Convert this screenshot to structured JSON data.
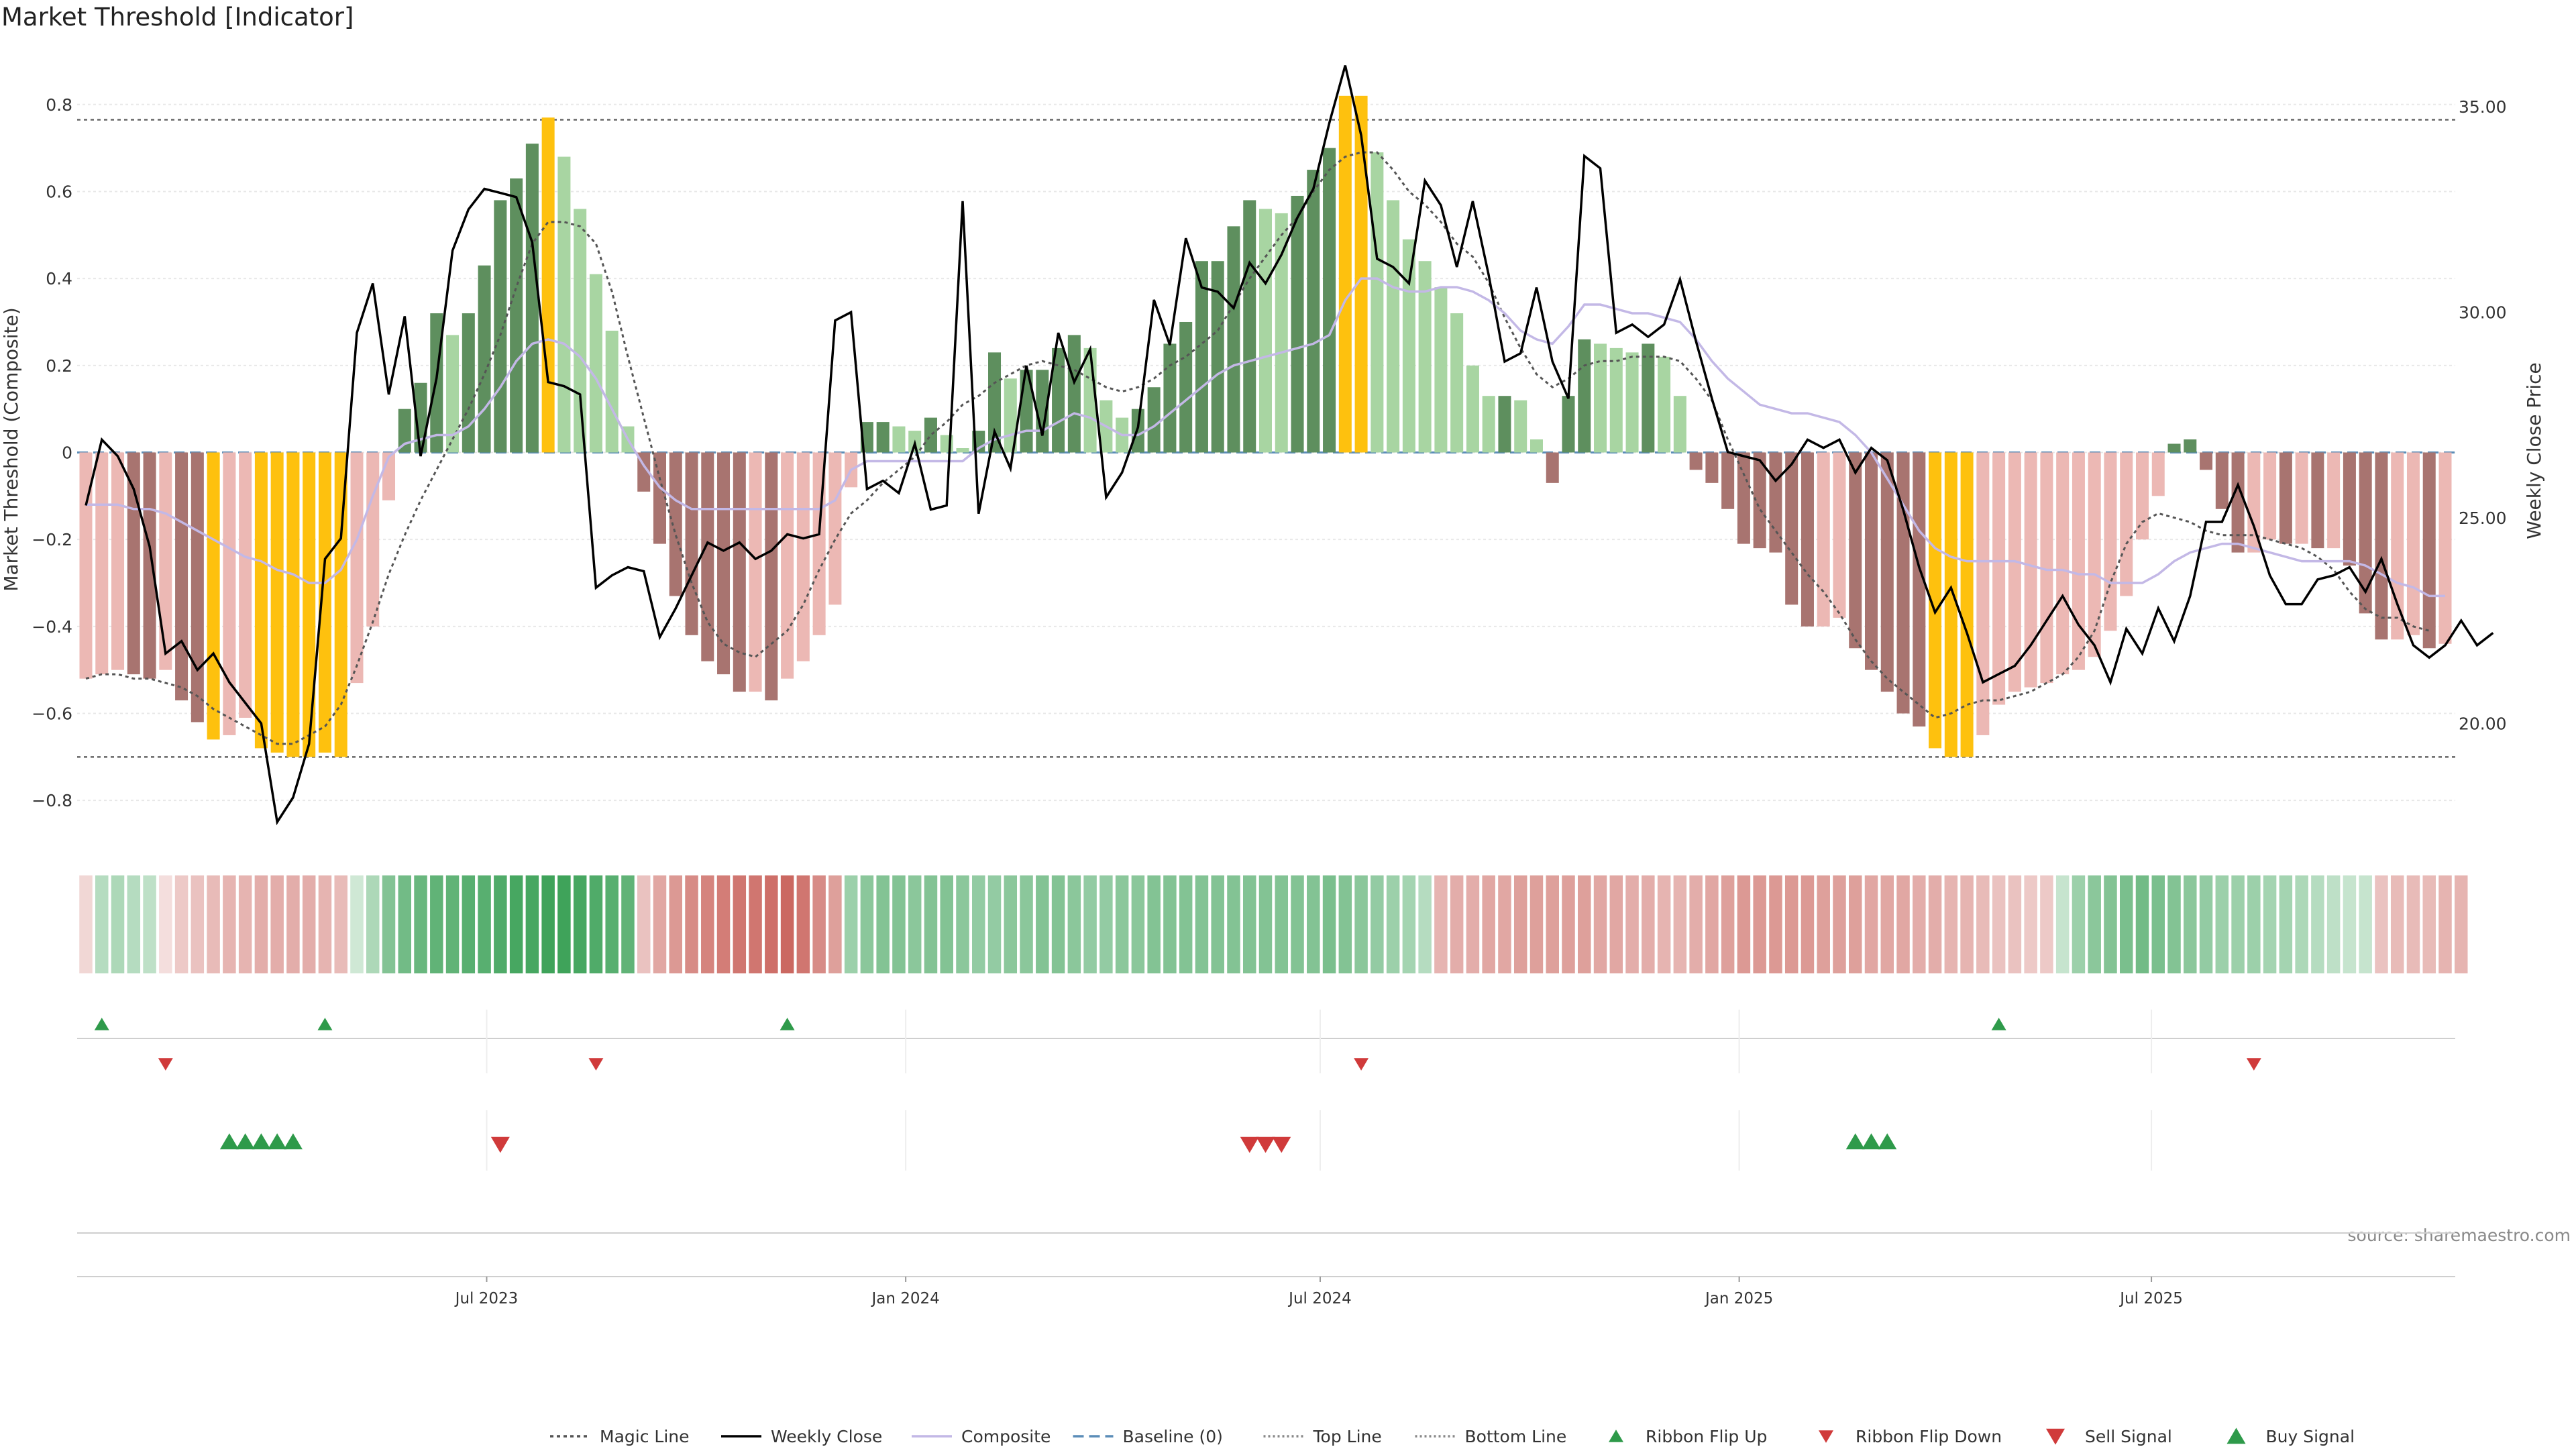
{
  "chart_data": {
    "type": "bar",
    "title": "Market Threshold [Indicator]",
    "ylabel_left": "Market Threshold (Composite)",
    "ylabel_right": "Weekly Close Price",
    "source_note": "source: sharemaestro.com",
    "ylim_left": [
      -0.9,
      0.92
    ],
    "ylim_right": [
      17.07,
      36.32
    ],
    "yticks_left": [
      0.8,
      0.6,
      0.4,
      0.2,
      0,
      -0.2,
      -0.4,
      -0.6,
      -0.8
    ],
    "ytick_labels_left": [
      "0.8",
      "0.6",
      "0.4",
      "0.2",
      "0",
      "−0.2",
      "−0.4",
      "−0.6",
      "−0.8"
    ],
    "yticks_right": [
      35,
      30,
      25,
      20
    ],
    "ytick_labels_right": [
      "35.00",
      "30.00",
      "25.00",
      "20.00"
    ],
    "x_start": "2023-01-06",
    "x_step_days": 7,
    "x_ticks": [
      {
        "date": "2023-07-01",
        "label": "Jul 2023"
      },
      {
        "date": "2024-01-01",
        "label": "Jan 2024"
      },
      {
        "date": "2024-07-01",
        "label": "Jul 2024"
      },
      {
        "date": "2025-01-01",
        "label": "Jan 2025"
      },
      {
        "date": "2025-07-01",
        "label": "Jul 2025"
      }
    ],
    "top_line": 0.765,
    "bottom_line": -0.7,
    "colors": {
      "strong_green": "#5e8f5e",
      "light_green": "#a8d5a2",
      "strong_red": "#a87470",
      "light_red": "#ecb8b4",
      "extreme": "#fec10e",
      "price": "#000000",
      "composite": "#c3b8e6",
      "magic": "#555555",
      "baseline": "#5b8db8",
      "ribbon_green": "#3fa35a",
      "ribbon_red": "#c9615a",
      "flip_up": "#2e9a4a",
      "flip_down": "#d03a3a"
    },
    "series": [
      {
        "name": "Market Threshold",
        "kind": "bars",
        "values": [
          -0.52,
          -0.51,
          -0.5,
          -0.51,
          -0.52,
          -0.5,
          -0.57,
          -0.62,
          -0.66,
          -0.65,
          -0.61,
          -0.68,
          -0.69,
          -0.7,
          -0.7,
          -0.69,
          -0.7,
          -0.53,
          -0.4,
          -0.11,
          0.1,
          0.16,
          0.32,
          0.27,
          0.32,
          0.43,
          0.58,
          0.63,
          0.71,
          0.77,
          0.68,
          0.56,
          0.41,
          0.28,
          0.06,
          -0.09,
          -0.21,
          -0.33,
          -0.42,
          -0.48,
          -0.51,
          -0.55,
          -0.55,
          -0.57,
          -0.52,
          -0.48,
          -0.42,
          -0.35,
          -0.08,
          0.07,
          0.07,
          0.06,
          0.05,
          0.08,
          0.04,
          0.01,
          0.05,
          0.23,
          0.17,
          0.19,
          0.19,
          0.24,
          0.27,
          0.24,
          0.12,
          0.08,
          0.1,
          0.15,
          0.25,
          0.3,
          0.44,
          0.44,
          0.52,
          0.58,
          0.56,
          0.55,
          0.59,
          0.65,
          0.7,
          0.82,
          0.82,
          0.69,
          0.58,
          0.49,
          0.44,
          0.38,
          0.32,
          0.2,
          0.13,
          0.13,
          0.12,
          0.03,
          -0.07,
          0.13,
          0.26,
          0.25,
          0.24,
          0.23,
          0.25,
          0.22,
          0.13,
          -0.04,
          -0.07,
          -0.13,
          -0.21,
          -0.22,
          -0.23,
          -0.35,
          -0.4,
          -0.4,
          -0.38,
          -0.45,
          -0.5,
          -0.55,
          -0.6,
          -0.63,
          -0.68,
          -0.7,
          -0.7,
          -0.65,
          -0.58,
          -0.55,
          -0.54,
          -0.53,
          -0.51,
          -0.5,
          -0.47,
          -0.41,
          -0.33,
          -0.2,
          -0.1,
          0.02,
          0.03,
          -0.04,
          -0.13,
          -0.23,
          -0.23,
          -0.2,
          -0.21,
          -0.21,
          -0.22,
          -0.22,
          -0.26,
          -0.37,
          -0.43,
          -0.43,
          -0.42,
          -0.45,
          -0.44
        ]
      },
      {
        "name": "Weekly Close",
        "kind": "line",
        "values": [
          25.3,
          26.9,
          26.5,
          25.7,
          24.3,
          21.7,
          22.0,
          21.3,
          21.7,
          21.0,
          20.5,
          20.0,
          17.6,
          18.2,
          19.5,
          24.0,
          24.5,
          29.5,
          30.7,
          28.0,
          29.9,
          26.5,
          28.4,
          31.5,
          32.5,
          33.0,
          32.9,
          32.8,
          31.7,
          28.3,
          28.2,
          28.0,
          23.3,
          23.6,
          23.8,
          23.7,
          22.1,
          22.8,
          23.6,
          24.4,
          24.2,
          24.4,
          24.0,
          24.2,
          24.6,
          24.5,
          24.6,
          29.8,
          30.0,
          25.7,
          25.9,
          25.6,
          26.8,
          25.2,
          25.3,
          32.7,
          25.1,
          27.1,
          26.2,
          28.7,
          27.0,
          29.5,
          28.3,
          29.1,
          25.5,
          26.1,
          27.2,
          30.3,
          29.2,
          31.8,
          30.6,
          30.5,
          30.1,
          31.2,
          30.7,
          31.4,
          32.3,
          33.0,
          34.6,
          36.0,
          34.3,
          31.3,
          31.1,
          30.7,
          33.2,
          32.6,
          31.1,
          32.7,
          30.9,
          28.8,
          29.0,
          30.6,
          28.8,
          27.9,
          33.8,
          33.5,
          29.5,
          29.7,
          29.4,
          29.7,
          30.8,
          29.3,
          27.9,
          26.6,
          26.5,
          26.4,
          25.9,
          26.3,
          26.9,
          26.7,
          26.9,
          26.1,
          26.7,
          26.4,
          25.2,
          23.8,
          22.7,
          23.3,
          22.2,
          21.0,
          21.2,
          21.4,
          21.9,
          22.5,
          23.1,
          22.4,
          21.9,
          21.0,
          22.3,
          21.7,
          22.8,
          22.0,
          23.1,
          24.9,
          24.9,
          25.8,
          24.8,
          23.6,
          22.9,
          22.9,
          23.5,
          23.6,
          23.8,
          23.2,
          24.0,
          22.9,
          21.9,
          21.6,
          21.9,
          22.5,
          21.9,
          22.2
        ]
      },
      {
        "name": "Composite",
        "kind": "line",
        "values": [
          -0.12,
          -0.12,
          -0.12,
          -0.13,
          -0.13,
          -0.14,
          -0.16,
          -0.18,
          -0.2,
          -0.22,
          -0.24,
          -0.25,
          -0.27,
          -0.28,
          -0.3,
          -0.3,
          -0.27,
          -0.2,
          -0.1,
          -0.01,
          0.02,
          0.03,
          0.04,
          0.04,
          0.06,
          0.1,
          0.15,
          0.21,
          0.25,
          0.26,
          0.25,
          0.22,
          0.17,
          0.1,
          0.03,
          -0.03,
          -0.08,
          -0.11,
          -0.13,
          -0.13,
          -0.13,
          -0.13,
          -0.13,
          -0.13,
          -0.13,
          -0.13,
          -0.13,
          -0.11,
          -0.04,
          -0.02,
          -0.02,
          -0.02,
          -0.02,
          -0.02,
          -0.02,
          -0.02,
          0.01,
          0.03,
          0.04,
          0.05,
          0.05,
          0.07,
          0.09,
          0.08,
          0.06,
          0.04,
          0.04,
          0.06,
          0.09,
          0.12,
          0.15,
          0.18,
          0.2,
          0.21,
          0.22,
          0.23,
          0.24,
          0.25,
          0.27,
          0.35,
          0.4,
          0.4,
          0.38,
          0.37,
          0.37,
          0.38,
          0.38,
          0.37,
          0.35,
          0.32,
          0.28,
          0.26,
          0.25,
          0.29,
          0.34,
          0.34,
          0.33,
          0.32,
          0.32,
          0.31,
          0.3,
          0.26,
          0.21,
          0.17,
          0.14,
          0.11,
          0.1,
          0.09,
          0.09,
          0.08,
          0.07,
          0.04,
          0.0,
          -0.06,
          -0.12,
          -0.18,
          -0.22,
          -0.24,
          -0.25,
          -0.25,
          -0.25,
          -0.25,
          -0.26,
          -0.27,
          -0.27,
          -0.28,
          -0.28,
          -0.3,
          -0.3,
          -0.3,
          -0.28,
          -0.25,
          -0.23,
          -0.22,
          -0.21,
          -0.21,
          -0.22,
          -0.23,
          -0.24,
          -0.25,
          -0.25,
          -0.25,
          -0.25,
          -0.26,
          -0.28,
          -0.3,
          -0.31,
          -0.33,
          -0.33
        ]
      },
      {
        "name": "Magic Line",
        "kind": "line",
        "values": [
          -0.52,
          -0.51,
          -0.51,
          -0.52,
          -0.52,
          -0.53,
          -0.54,
          -0.56,
          -0.59,
          -0.61,
          -0.63,
          -0.65,
          -0.67,
          -0.67,
          -0.65,
          -0.63,
          -0.58,
          -0.49,
          -0.39,
          -0.28,
          -0.19,
          -0.11,
          -0.04,
          0.03,
          0.1,
          0.18,
          0.27,
          0.38,
          0.48,
          0.53,
          0.53,
          0.52,
          0.48,
          0.37,
          0.22,
          0.08,
          -0.06,
          -0.19,
          -0.3,
          -0.39,
          -0.44,
          -0.46,
          -0.47,
          -0.44,
          -0.41,
          -0.35,
          -0.27,
          -0.2,
          -0.14,
          -0.11,
          -0.07,
          -0.04,
          -0.01,
          0.04,
          0.07,
          0.11,
          0.13,
          0.16,
          0.18,
          0.2,
          0.21,
          0.2,
          0.19,
          0.17,
          0.15,
          0.14,
          0.15,
          0.17,
          0.2,
          0.22,
          0.25,
          0.28,
          0.34,
          0.4,
          0.45,
          0.5,
          0.54,
          0.6,
          0.65,
          0.68,
          0.69,
          0.69,
          0.65,
          0.6,
          0.57,
          0.53,
          0.48,
          0.45,
          0.39,
          0.31,
          0.24,
          0.18,
          0.15,
          0.17,
          0.2,
          0.21,
          0.21,
          0.22,
          0.22,
          0.22,
          0.21,
          0.17,
          0.12,
          0.03,
          -0.05,
          -0.13,
          -0.18,
          -0.23,
          -0.28,
          -0.32,
          -0.37,
          -0.43,
          -0.48,
          -0.52,
          -0.55,
          -0.58,
          -0.61,
          -0.6,
          -0.58,
          -0.57,
          -0.57,
          -0.56,
          -0.55,
          -0.53,
          -0.51,
          -0.47,
          -0.41,
          -0.3,
          -0.21,
          -0.16,
          -0.14,
          -0.15,
          -0.16,
          -0.18,
          -0.19,
          -0.19,
          -0.19,
          -0.2,
          -0.21,
          -0.22,
          -0.24,
          -0.27,
          -0.32,
          -0.36,
          -0.38,
          -0.38,
          -0.4,
          -0.41
        ]
      }
    ],
    "ribbon": {
      "kind": "heat strip, one cell per week",
      "values": [
        -0.15,
        0.3,
        0.35,
        0.3,
        0.25,
        -0.1,
        -0.25,
        -0.3,
        -0.35,
        -0.4,
        -0.4,
        -0.45,
        -0.45,
        -0.45,
        -0.45,
        -0.4,
        -0.35,
        0.15,
        0.35,
        0.6,
        0.7,
        0.75,
        0.8,
        0.8,
        0.85,
        0.85,
        0.9,
        0.95,
        0.95,
        1.0,
        1.0,
        0.95,
        0.9,
        0.85,
        0.8,
        -0.3,
        -0.5,
        -0.6,
        -0.7,
        -0.75,
        -0.8,
        -0.85,
        -0.85,
        -0.9,
        -0.95,
        -0.85,
        -0.7,
        -0.55,
        0.45,
        0.55,
        0.6,
        0.6,
        0.55,
        0.6,
        0.6,
        0.55,
        0.5,
        0.5,
        0.55,
        0.55,
        0.6,
        0.6,
        0.55,
        0.5,
        0.5,
        0.55,
        0.55,
        0.6,
        0.6,
        0.6,
        0.6,
        0.6,
        0.6,
        0.6,
        0.6,
        0.6,
        0.6,
        0.6,
        0.65,
        0.6,
        0.55,
        0.5,
        0.45,
        0.4,
        0.3,
        -0.4,
        -0.45,
        -0.45,
        -0.5,
        -0.5,
        -0.55,
        -0.55,
        -0.55,
        -0.55,
        -0.55,
        -0.5,
        -0.5,
        -0.45,
        -0.45,
        -0.4,
        -0.4,
        -0.45,
        -0.5,
        -0.55,
        -0.6,
        -0.6,
        -0.6,
        -0.6,
        -0.6,
        -0.55,
        -0.55,
        -0.55,
        -0.5,
        -0.5,
        -0.5,
        -0.45,
        -0.45,
        -0.4,
        -0.4,
        -0.35,
        -0.3,
        -0.3,
        -0.25,
        -0.25,
        0.2,
        0.45,
        0.55,
        0.6,
        0.65,
        0.7,
        0.65,
        0.6,
        0.55,
        0.5,
        0.45,
        0.45,
        0.45,
        0.4,
        0.4,
        0.35,
        0.3,
        0.25,
        0.2,
        0.2,
        -0.3,
        -0.35,
        -0.35,
        -0.35,
        -0.4,
        -0.4
      ]
    },
    "ribbon_flip_up": [
      1,
      15,
      44,
      120
    ],
    "ribbon_flip_down": [
      5,
      32,
      80,
      136
    ],
    "buy_signal": [
      9,
      10,
      11,
      12,
      13,
      111,
      112,
      113
    ],
    "sell_signal": [
      26,
      73,
      74,
      75
    ],
    "legend": [
      "Magic Line",
      "Weekly Close",
      "Composite",
      "Baseline (0)",
      "Top Line",
      "Bottom Line",
      "Ribbon Flip Up",
      "Ribbon Flip Down",
      "Sell Signal",
      "Buy Signal"
    ],
    "legend_placement": "bottom-center"
  }
}
